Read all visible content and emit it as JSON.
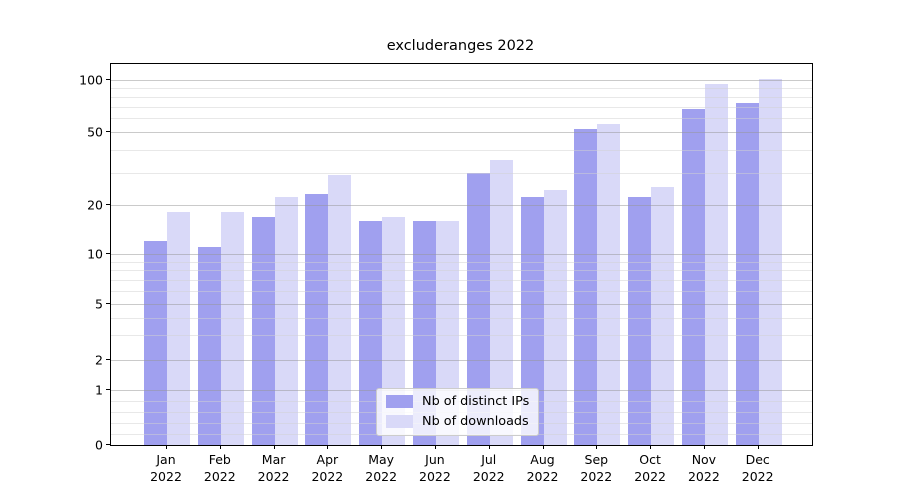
{
  "window": {
    "title": "excluderanges 2022"
  },
  "chart_data": {
    "type": "bar",
    "title": "excluderanges 2022",
    "xlabel": "",
    "ylabel": "",
    "yscale": "symlog",
    "grid": true,
    "legend_position": "lower center",
    "categories": [
      "Jan",
      "Feb",
      "Mar",
      "Apr",
      "May",
      "Jun",
      "Jul",
      "Aug",
      "Sep",
      "Oct",
      "Nov",
      "Dec"
    ],
    "category_year": "2022",
    "series": [
      {
        "name": "Nb of distinct IPs",
        "color": "#a0a0ef",
        "values": [
          12,
          11,
          17,
          23,
          16,
          16,
          30,
          22,
          52,
          22,
          68,
          74
        ]
      },
      {
        "name": "Nb of downloads",
        "color": "#d9d9f8",
        "values": [
          18,
          18,
          22,
          29,
          17,
          16,
          35,
          24,
          56,
          25,
          95,
          102
        ]
      }
    ],
    "y_ticks": [
      {
        "value": 100,
        "label": "100"
      },
      {
        "value": 50,
        "label": "50"
      },
      {
        "value": 20,
        "label": "20"
      },
      {
        "value": 10,
        "label": "10"
      },
      {
        "value": 5,
        "label": "5"
      },
      {
        "value": 2,
        "label": "2"
      },
      {
        "value": 1,
        "label": "1"
      },
      {
        "value": 0,
        "label": "0"
      }
    ],
    "y_minor_ticks": [
      0.2,
      0.4,
      0.6,
      0.8,
      3,
      4,
      6,
      7,
      8,
      9,
      30,
      40,
      60,
      70,
      80,
      90
    ],
    "ylim_bottom": 0,
    "colors": {
      "major_grid": "#c8c8c8",
      "minor_grid": "#e9e9e9",
      "spine": "#000000",
      "background": "#ffffff"
    }
  }
}
